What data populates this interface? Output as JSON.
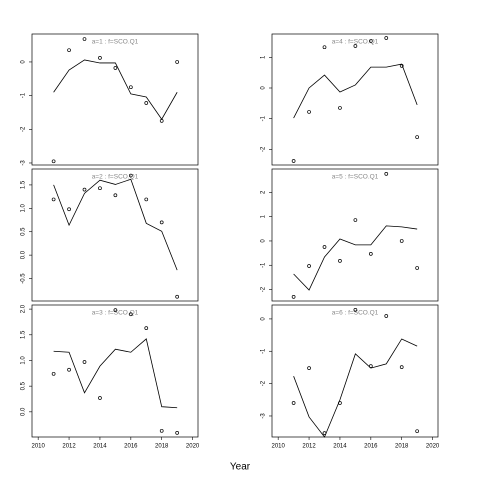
{
  "xlabel": "Year",
  "chart_data": [
    {
      "type": "line",
      "title": "a=1  :  f=SCO.Q1",
      "x": [
        2011,
        2012,
        2013,
        2014,
        2015,
        2016,
        2017,
        2018,
        2019
      ],
      "series": [
        {
          "style": "points",
          "color": "#000000",
          "values": [
            -2.95,
            0.35,
            0.68,
            0.12,
            -0.18,
            -0.75,
            -1.22,
            -1.75,
            0
          ]
        },
        {
          "style": "line",
          "color": "#000000",
          "values": [
            -0.9,
            -0.24,
            0.06,
            -0.03,
            -0.03,
            -0.95,
            -1.04,
            -1.7,
            -0.9
          ]
        }
      ],
      "xlim": [
        2009.6,
        2020.35
      ],
      "ylim": [
        -3.06,
        0.83
      ],
      "yticks": [
        -3,
        -2,
        -1,
        0
      ]
    },
    {
      "type": "line",
      "title": "a=2  :  f=SCO.Q1",
      "x": [
        2011,
        2012,
        2013,
        2014,
        2015,
        2016,
        2017,
        2018,
        2019
      ],
      "series": [
        {
          "style": "points",
          "color": "#000000",
          "values": [
            1.19,
            0.98,
            1.4,
            1.43,
            1.28,
            1.7,
            1.19,
            0.7,
            -0.89
          ]
        },
        {
          "style": "line",
          "color": "#000000",
          "values": [
            1.5,
            0.64,
            1.32,
            1.6,
            1.51,
            1.62,
            0.68,
            0.51,
            -0.32
          ]
        }
      ],
      "xlim": [
        2009.6,
        2020.35
      ],
      "ylim": [
        -0.98,
        1.84
      ],
      "yticks": [
        -0.5,
        {
          "value": 0,
          "label": "0.0"
        },
        0.5,
        {
          "value": 1,
          "label": "1.0"
        },
        1.5
      ]
    },
    {
      "type": "line",
      "title": "a=3  :  f=SCO.Q1",
      "x": [
        2011,
        2012,
        2013,
        2014,
        2015,
        2016,
        2017,
        2018,
        2019
      ],
      "series": [
        {
          "style": "points",
          "color": "#000000",
          "values": [
            0.74,
            0.82,
            0.97,
            0.27,
            1.98,
            1.9,
            1.63,
            -0.37,
            -0.41
          ]
        },
        {
          "style": "line",
          "color": "#000000",
          "values": [
            1.18,
            1.16,
            0.37,
            0.89,
            1.22,
            1.16,
            1.42,
            0.1,
            0.08
          ]
        }
      ],
      "xlim": [
        2009.6,
        2020.35
      ],
      "ylim": [
        -0.49,
        2.08
      ],
      "yticks": [
        {
          "value": 0,
          "label": "0.0"
        },
        0.5,
        {
          "value": 1,
          "label": "1.0"
        },
        1.5,
        {
          "value": 2,
          "label": "2.0"
        }
      ],
      "xticks": [
        2010,
        2012,
        2014,
        2016,
        2018,
        2020
      ]
    },
    {
      "type": "line",
      "title": "a=4  :  f=SCO.Q1",
      "x": [
        2011,
        2012,
        2013,
        2014,
        2015,
        2016,
        2017,
        2018,
        2019
      ],
      "series": [
        {
          "style": "points",
          "color": "#000000",
          "values": [
            -2.38,
            -0.78,
            1.33,
            -0.65,
            1.37,
            1.53,
            1.63,
            0.72,
            -1.6
          ]
        },
        {
          "style": "line",
          "color": "#000000",
          "values": [
            -0.98,
            0,
            0.42,
            -0.13,
            0.1,
            0.68,
            0.68,
            0.78,
            -0.55
          ]
        }
      ],
      "xlim": [
        2009.6,
        2020.35
      ],
      "ylim": [
        -2.51,
        1.76
      ],
      "yticks": [
        -2,
        -1,
        0,
        1
      ]
    },
    {
      "type": "line",
      "title": "a=5  :  f=SCO.Q1",
      "x": [
        2011,
        2012,
        2013,
        2014,
        2015,
        2016,
        2017,
        2018,
        2019
      ],
      "series": [
        {
          "style": "points",
          "color": "#000000",
          "values": [
            -2.3,
            -1.03,
            -0.25,
            -0.82,
            0.86,
            -0.53,
            2.76,
            0,
            -1.11
          ]
        },
        {
          "style": "line",
          "color": "#000000",
          "values": [
            -1.36,
            -2.02,
            -0.66,
            0.08,
            -0.16,
            -0.16,
            0.62,
            0.58,
            0.49
          ]
        }
      ],
      "xlim": [
        2009.6,
        2020.35
      ],
      "ylim": [
        -2.47,
        2.96
      ],
      "yticks": [
        -2,
        -1,
        0,
        1,
        2
      ]
    },
    {
      "type": "line",
      "title": "a=6  :  f=SCO.Q1",
      "x": [
        2011,
        2012,
        2013,
        2014,
        2015,
        2016,
        2017,
        2018,
        2019
      ],
      "series": [
        {
          "style": "points",
          "color": "#000000",
          "values": [
            -2.6,
            -1.52,
            -3.53,
            -2.6,
            0.28,
            -1.46,
            0.09,
            -1.49,
            -3.47
          ]
        },
        {
          "style": "line",
          "color": "#000000",
          "values": [
            -1.77,
            -3.03,
            -3.65,
            -2.5,
            -1.08,
            -1.52,
            -1.39,
            -0.62,
            -0.84
          ]
        }
      ],
      "xlim": [
        2009.6,
        2020.35
      ],
      "ylim": [
        -3.65,
        0.43
      ],
      "yticks": [
        -3,
        -2,
        -1,
        0
      ],
      "xticks": [
        2010,
        2012,
        2014,
        2016,
        2018,
        2020
      ]
    }
  ]
}
